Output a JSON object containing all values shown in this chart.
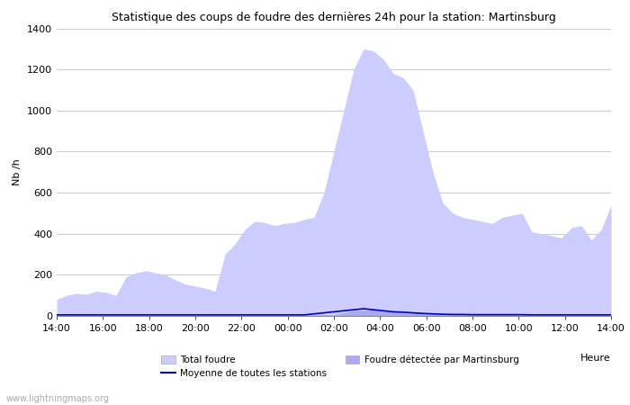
{
  "title": "Statistique des coups de foudre des dernières 24h pour la station: Martinsburg",
  "ylabel": "Nb /h",
  "xlabel": "Heure",
  "watermark": "www.lightningmaps.org",
  "ylim": [
    0,
    1400
  ],
  "yticks": [
    0,
    200,
    400,
    600,
    800,
    1000,
    1200,
    1400
  ],
  "xtick_labels": [
    "14:00",
    "16:00",
    "18:00",
    "20:00",
    "22:00",
    "00:00",
    "02:00",
    "04:00",
    "06:00",
    "08:00",
    "10:00",
    "12:00",
    "14:00"
  ],
  "total_foudre_color": "#ccccff",
  "martinsburg_color": "#aaaaee",
  "moyenne_color": "#0000cc",
  "background_color": "#ffffff",
  "grid_color": "#cccccc",
  "total_foudre": [
    80,
    100,
    110,
    105,
    120,
    115,
    100,
    190,
    210,
    220,
    210,
    200,
    175,
    155,
    145,
    135,
    120,
    300,
    350,
    420,
    460,
    455,
    440,
    450,
    455,
    470,
    480,
    600,
    800,
    1000,
    1200,
    1300,
    1290,
    1250,
    1180,
    1160,
    1100,
    900,
    700,
    550,
    500,
    480,
    470,
    460,
    450,
    480,
    490,
    500,
    410,
    400,
    390,
    380,
    430,
    440,
    370,
    420,
    540
  ],
  "martinsburg": [
    5,
    5,
    5,
    5,
    5,
    5,
    5,
    5,
    5,
    5,
    5,
    5,
    5,
    5,
    5,
    5,
    5,
    5,
    5,
    5,
    5,
    5,
    5,
    5,
    5,
    5,
    5,
    5,
    5,
    15,
    25,
    28,
    30,
    25,
    25,
    20,
    18,
    15,
    10,
    10,
    8,
    8,
    7,
    7,
    7,
    7,
    7,
    7,
    5,
    5,
    5,
    5,
    5,
    5,
    5,
    5,
    5
  ],
  "moyenne": [
    5,
    5,
    5,
    5,
    5,
    5,
    5,
    5,
    5,
    5,
    5,
    5,
    5,
    5,
    5,
    5,
    5,
    5,
    5,
    5,
    5,
    5,
    5,
    5,
    5,
    5,
    10,
    15,
    20,
    25,
    30,
    35,
    30,
    25,
    20,
    18,
    15,
    12,
    10,
    8,
    7,
    7,
    6,
    6,
    6,
    6,
    6,
    6,
    5,
    5,
    5,
    5,
    5,
    5,
    5,
    5,
    5
  ],
  "n_points": 57
}
